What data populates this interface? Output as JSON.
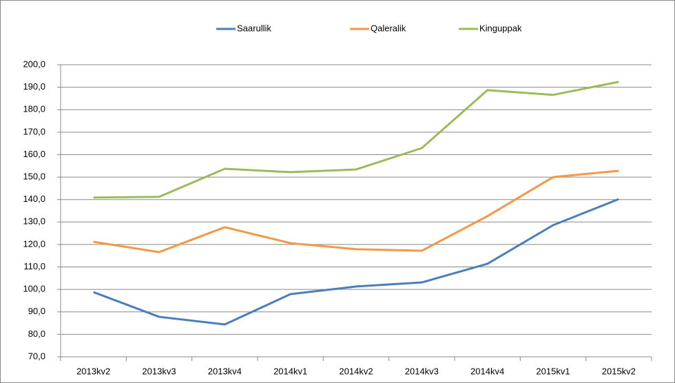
{
  "chart_data": {
    "type": "line",
    "categories": [
      "2013kv2",
      "2013kv3",
      "2013kv4",
      "2014kv1",
      "2014kv2",
      "2014kv3",
      "2014kv4",
      "2015kv1",
      "2015kv2"
    ],
    "series": [
      {
        "name": "Saarullik",
        "color": "#4a7ebb",
        "values": [
          98.8,
          87.8,
          84.4,
          97.9,
          101.3,
          103.1,
          111.4,
          128.6,
          140.2
        ]
      },
      {
        "name": "Qaleralik",
        "color": "#f79646",
        "values": [
          121.2,
          116.6,
          127.7,
          120.6,
          117.9,
          117.2,
          132.6,
          150.0,
          152.8
        ]
      },
      {
        "name": "Kinguppak",
        "color": "#9bbb59",
        "values": [
          140.9,
          141.2,
          153.7,
          152.2,
          153.4,
          162.9,
          188.7,
          186.6,
          192.4
        ]
      }
    ],
    "ylim": [
      70,
      200
    ],
    "yticks": [
      {
        "value": 70,
        "label": "70,0"
      },
      {
        "value": 80,
        "label": "80,0"
      },
      {
        "value": 90,
        "label": "90,0"
      },
      {
        "value": 100,
        "label": "100,0"
      },
      {
        "value": 110,
        "label": "110,0"
      },
      {
        "value": 120,
        "label": "120,0"
      },
      {
        "value": 130,
        "label": "130,0"
      },
      {
        "value": 140,
        "label": "140,0"
      },
      {
        "value": 150,
        "label": "150,0"
      },
      {
        "value": 160,
        "label": "160,0"
      },
      {
        "value": 170,
        "label": "170,0"
      },
      {
        "value": 180,
        "label": "180,0"
      },
      {
        "value": 190,
        "label": "190,0"
      },
      {
        "value": 200,
        "label": "200,0"
      }
    ],
    "grid": true,
    "legend": "top"
  }
}
